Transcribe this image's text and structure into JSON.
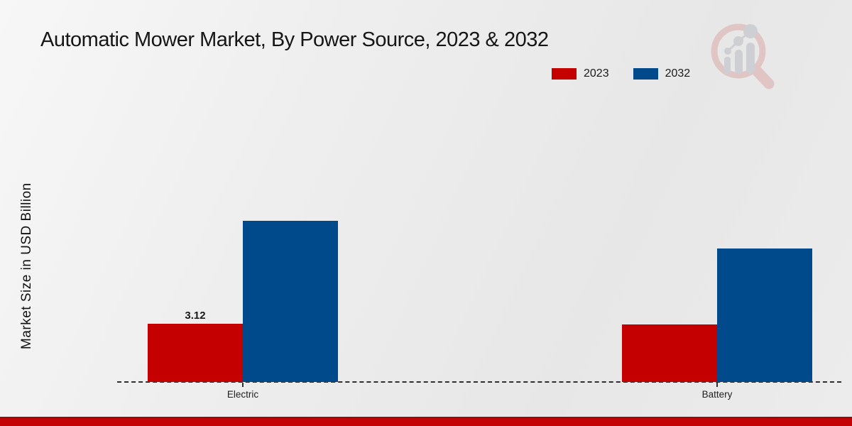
{
  "branding": {
    "watermark_icon": "magnifier-bar-chart-logo",
    "footer_bar_color": "#c40404"
  },
  "chart_data": {
    "type": "bar",
    "title": "Automatic Mower Market, By Power Source, 2023 & 2032",
    "xlabel": "",
    "ylabel": "Market Size in USD Billion",
    "categories": [
      "Electric",
      "Battery"
    ],
    "series": [
      {
        "name": "2023",
        "color": "#c40000",
        "values": [
          3.12,
          3.08
        ],
        "labels": [
          "3.12",
          ""
        ]
      },
      {
        "name": "2032",
        "color": "#004a8c",
        "values": [
          8.64,
          7.15
        ],
        "labels": [
          "",
          ""
        ]
      }
    ],
    "ylim": [
      0,
      10
    ],
    "grid": false,
    "y_axis_ticks_visible": false,
    "legend_position": "top-right",
    "baseline_style": "dashed"
  }
}
